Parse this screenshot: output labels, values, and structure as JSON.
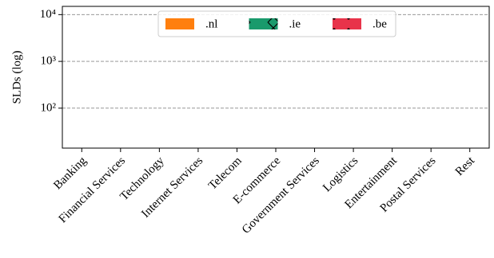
{
  "chart_data": {
    "type": "bar",
    "y_label": "SLDs (log)",
    "categories": [
      "Banking",
      "Financial Services",
      "Technology",
      "Internet Services",
      "Telecom",
      "E-commerce",
      "Government Services",
      "Logistics",
      "Entertainment",
      "Postal Services",
      "Rest"
    ],
    "series": [
      {
        "name": ".nl",
        "color": "#ff7f0e",
        "hatch": "none",
        "values": [
          null,
          null,
          null,
          null,
          null,
          null,
          null,
          null,
          null,
          null,
          null
        ]
      },
      {
        "name": ".ie",
        "color": "#1a9a6c",
        "hatch": "x",
        "values": [
          null,
          null,
          null,
          null,
          null,
          null,
          null,
          null,
          null,
          null,
          null
        ]
      },
      {
        "name": ".be",
        "color": "#e8334a",
        "hatch": "dots",
        "values": [
          null,
          null,
          null,
          null,
          null,
          null,
          null,
          null,
          null,
          null,
          null
        ]
      }
    ],
    "log_scale": true,
    "ylim": [
      14,
      15000
    ],
    "yticks": [
      {
        "value": 100,
        "label": "10²"
      },
      {
        "value": 1000,
        "label": "10³"
      },
      {
        "value": 10000,
        "label": "10⁴"
      }
    ],
    "grid": true,
    "legend": "top-center"
  }
}
